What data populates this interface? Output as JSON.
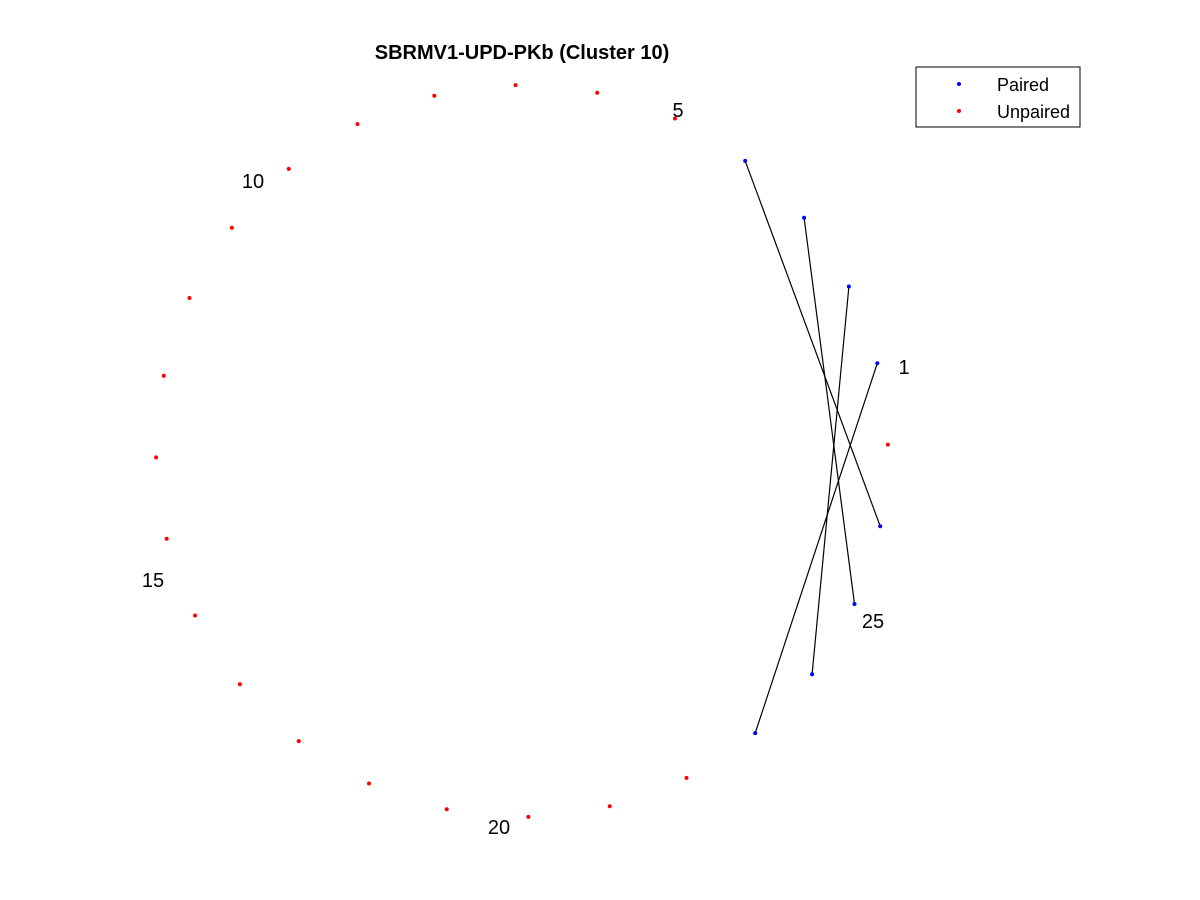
{
  "title": "SBRMV1-UPD-PKb (Cluster 10)",
  "legend": {
    "placement": "top-right",
    "items": [
      {
        "label": "Paired",
        "color": "#0000ff"
      },
      {
        "label": "Unpaired",
        "color": "#ff0000"
      }
    ]
  },
  "colors": {
    "paired": "#0000ff",
    "unpaired": "#ff0000",
    "pair_line": "#000000"
  },
  "total_positions": 28,
  "start_position": 1,
  "direction": "counter-clockwise",
  "labeled_positions": [
    "1",
    "5",
    "10",
    "15",
    "20",
    "25"
  ],
  "pairs": [
    [
      2,
      25
    ],
    [
      3,
      26
    ],
    [
      4,
      27
    ],
    [
      5,
      28
    ]
  ]
}
